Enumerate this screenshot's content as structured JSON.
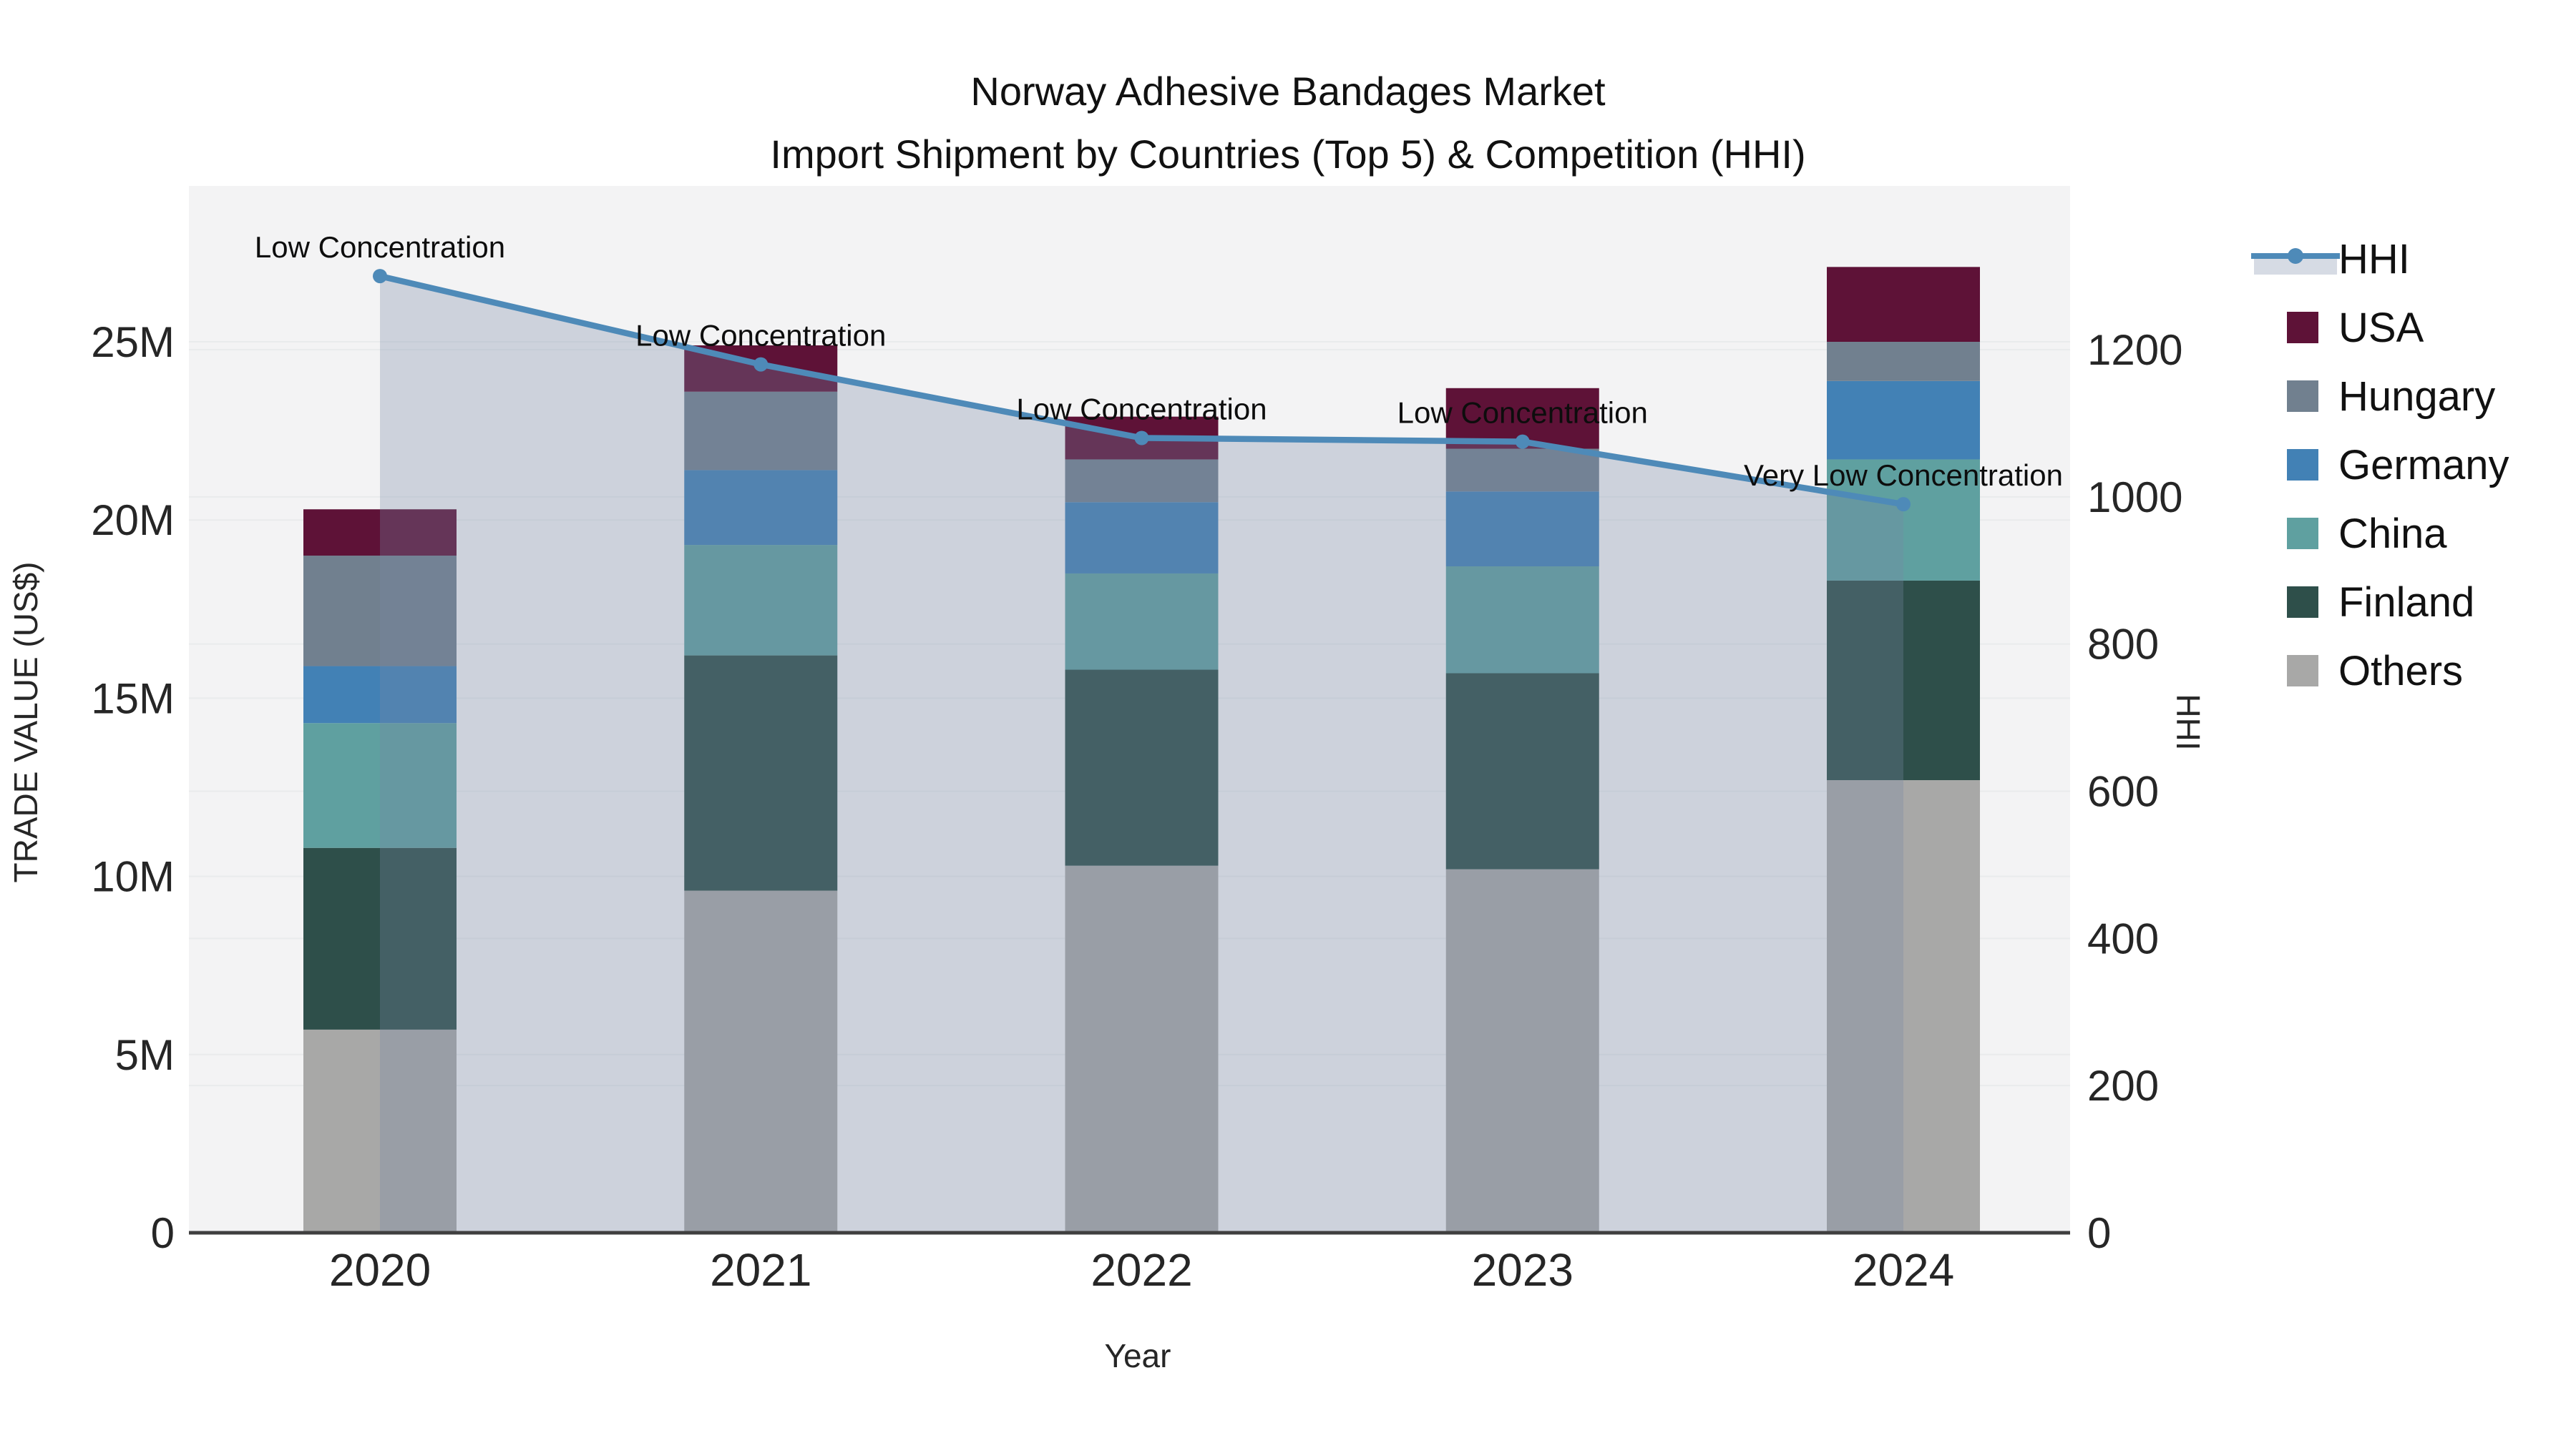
{
  "figure": {
    "title": "Norway Adhesive Bandages Market",
    "subtitle": "Import Shipment by Countries (Top 5) & Competition (HHI)"
  },
  "chart_data": {
    "type": "bar",
    "stacked": true,
    "title": "Norway Adhesive Bandages Market",
    "subtitle": "Import Shipment by Countries (Top 5) & Competition (HHI)",
    "categories": [
      "2020",
      "2021",
      "2022",
      "2023",
      "2024"
    ],
    "value_unit": "million US$",
    "series": [
      {
        "name": "Others",
        "color": "#a8a8a7",
        "values": [
          5.7,
          9.6,
          10.3,
          10.2,
          12.7
        ]
      },
      {
        "name": "Finland",
        "color": "#2e4f4a",
        "values": [
          5.1,
          6.6,
          5.5,
          5.5,
          5.6
        ]
      },
      {
        "name": "China",
        "color": "#5fa0a0",
        "values": [
          3.5,
          3.1,
          2.7,
          3.0,
          3.4
        ]
      },
      {
        "name": "Germany",
        "color": "#4281b5",
        "values": [
          1.6,
          2.1,
          2.0,
          2.1,
          2.2
        ]
      },
      {
        "name": "Hungary",
        "color": "#71808f",
        "values": [
          3.1,
          2.2,
          1.2,
          1.2,
          1.1
        ]
      },
      {
        "name": "USA",
        "color": "#5e1237",
        "values": [
          1.3,
          1.3,
          1.2,
          1.7,
          2.1
        ]
      }
    ],
    "line": {
      "name": "HHI",
      "axis": "right",
      "color": "#4e8ab8",
      "area_color": "rgba(120,135,165,0.30)",
      "values": [
        1300,
        1180,
        1080,
        1075,
        990
      ]
    },
    "annotations": [
      {
        "category": "2020",
        "text": "Low Concentration"
      },
      {
        "category": "2021",
        "text": "Low Concentration"
      },
      {
        "category": "2022",
        "text": "Low Concentration"
      },
      {
        "category": "2023",
        "text": "Low Concentration"
      },
      {
        "category": "2024",
        "text": "Very Low Concentration"
      }
    ],
    "x_axis": {
      "label": "Year"
    },
    "left_axis": {
      "label": "TRADE VALUE (US$)",
      "tick_labels": [
        "0",
        "5M",
        "10M",
        "15M",
        "20M",
        "25M"
      ],
      "tick_values": [
        0,
        5,
        10,
        15,
        20,
        25
      ],
      "range": [
        0,
        29.4
      ]
    },
    "right_axis": {
      "label": "HHI",
      "tick_labels": [
        "0",
        "200",
        "400",
        "600",
        "800",
        "1000",
        "1200"
      ],
      "tick_values": [
        0,
        200,
        400,
        600,
        800,
        1000,
        1200
      ],
      "range": [
        0,
        1422
      ]
    },
    "legend": [
      "HHI",
      "USA",
      "Hungary",
      "Germany",
      "China",
      "Finland",
      "Others"
    ],
    "grid": true,
    "legend_position": "right"
  }
}
